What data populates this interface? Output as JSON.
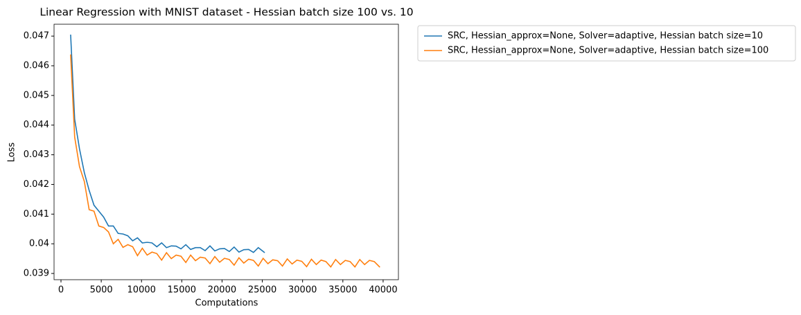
{
  "chart_data": {
    "type": "line",
    "title": "Linear Regression with MNIST dataset - Hessian batch size 100 vs. 10",
    "x_label": "Computations",
    "y_label": "Loss",
    "xlim": [
      -860,
      41900
    ],
    "xticks": [
      0,
      5000,
      10000,
      15000,
      20000,
      25000,
      30000,
      35000,
      40000
    ],
    "ylim": [
      0.03879,
      0.0474
    ],
    "yticks": [
      0.039,
      0.04,
      0.041,
      0.042,
      0.043,
      0.044,
      0.045,
      0.046,
      0.047
    ],
    "legend": "outside upper right",
    "series": [
      {
        "name": "SRC, Hessian_approx=None, Solver=adaptive, Hessian batch size=10",
        "color": "#1f77b4",
        "x": [
          1200,
          1700,
          2300,
          2900,
          3500,
          4100,
          4700,
          5300,
          5900,
          6500,
          7100,
          7700,
          8300,
          8900,
          9500,
          10100,
          10700,
          11300,
          11900,
          12500,
          13100,
          13700,
          14300,
          14900,
          15500,
          16100,
          16700,
          17300,
          17900,
          18500,
          19100,
          19700,
          20300,
          20900,
          21500,
          22100,
          22700,
          23300,
          23900,
          24500,
          25300
        ],
        "values": [
          0.04705,
          0.0442,
          0.0432,
          0.0424,
          0.0418,
          0.0413,
          0.0411,
          0.0409,
          0.0406,
          0.0406,
          0.04035,
          0.04033,
          0.04027,
          0.0401,
          0.0402,
          0.04003,
          0.04005,
          0.04003,
          0.0399,
          0.04003,
          0.03987,
          0.03993,
          0.03992,
          0.03983,
          0.03997,
          0.03981,
          0.03987,
          0.03987,
          0.03977,
          0.03993,
          0.03976,
          0.03983,
          0.03984,
          0.03974,
          0.03989,
          0.03972,
          0.0398,
          0.03981,
          0.03971,
          0.03987,
          0.0397
        ]
      },
      {
        "name": "SRC, Hessian_approx=None, Solver=adaptive, Hessian batch size=100",
        "color": "#ff7f0e",
        "x": [
          1200,
          1700,
          2300,
          2900,
          3500,
          4100,
          4700,
          5300,
          5900,
          6500,
          7100,
          7700,
          8300,
          8900,
          9500,
          10100,
          10700,
          11300,
          11900,
          12500,
          13100,
          13700,
          14300,
          14900,
          15500,
          16100,
          16700,
          17300,
          17900,
          18500,
          19100,
          19700,
          20300,
          20900,
          21500,
          22100,
          22700,
          23300,
          23900,
          24500,
          25100,
          25700,
          26300,
          26900,
          27500,
          28100,
          28700,
          29300,
          29900,
          30500,
          31100,
          31700,
          32300,
          32900,
          33500,
          34100,
          34700,
          35300,
          35900,
          36500,
          37100,
          37700,
          38300,
          38900,
          39600
        ],
        "values": [
          0.04638,
          0.0436,
          0.0426,
          0.0421,
          0.04115,
          0.0411,
          0.0406,
          0.04055,
          0.0404,
          0.04,
          0.04015,
          0.03988,
          0.03997,
          0.0399,
          0.0396,
          0.03985,
          0.03962,
          0.03972,
          0.03967,
          0.03945,
          0.0397,
          0.0395,
          0.03962,
          0.03958,
          0.03937,
          0.03962,
          0.03943,
          0.03955,
          0.03952,
          0.03933,
          0.03957,
          0.03938,
          0.03951,
          0.03947,
          0.03928,
          0.03953,
          0.03935,
          0.03948,
          0.03944,
          0.03925,
          0.03951,
          0.03933,
          0.03946,
          0.03943,
          0.03925,
          0.03949,
          0.03932,
          0.03945,
          0.03941,
          0.03923,
          0.03948,
          0.0393,
          0.03945,
          0.0394,
          0.03922,
          0.03947,
          0.0393,
          0.03944,
          0.0394,
          0.03922,
          0.03947,
          0.0393,
          0.03944,
          0.0394,
          0.03921
        ]
      }
    ]
  }
}
